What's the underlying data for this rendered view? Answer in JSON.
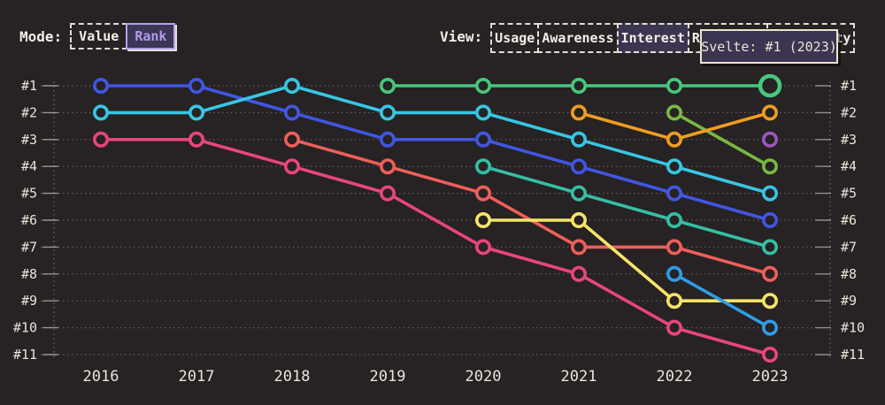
{
  "controls": {
    "mode": {
      "label": "Mode:",
      "options": [
        {
          "label": "Value",
          "selected": false
        },
        {
          "label": "Rank",
          "selected": true
        }
      ]
    },
    "view": {
      "label": "View:",
      "options": [
        {
          "label": "Usage",
          "selected": false
        },
        {
          "label": "Awareness",
          "selected": false
        },
        {
          "label": "Interest",
          "selected": true
        },
        {
          "label": "Retention",
          "selected": false,
          "occluded_by_tooltip": true
        },
        {
          "label": "Positivity",
          "selected": false,
          "partially_occluded_by_tooltip": true,
          "visible_fragment": "ty"
        }
      ]
    }
  },
  "tooltip": {
    "text": "Svelte: #1 (2023)"
  },
  "colors": {
    "background": "#272223",
    "grid_dotted": "rgba(238,232,222,0.30)",
    "tick_solid": "rgba(238,232,222,0.55)",
    "axis_label": "#eae4d8",
    "selected_fill": "#3b3552",
    "selected_mode_border": "#b6a1ea",
    "tooltip_border": "#eee3cc"
  },
  "chart_data": {
    "type": "line",
    "variant": "rank-bump",
    "title": "",
    "xlabel": "",
    "ylabel": "",
    "grid": "dotted horizontal lines per rank, dotted vertical axis lines both sides, rank labels on both sides",
    "years": [
      2016,
      2017,
      2018,
      2019,
      2020,
      2021,
      2022,
      2023
    ],
    "rank_axis": {
      "min": 1,
      "max": 11,
      "labels": [
        "#1",
        "#2",
        "#3",
        "#4",
        "#5",
        "#6",
        "#7",
        "#8",
        "#9",
        "#10",
        "#11"
      ],
      "sides": [
        "left",
        "right"
      ],
      "inverted": true
    },
    "series": [
      {
        "name": "rose",
        "color": "#e8467c",
        "ranks": {
          "2016": 3,
          "2017": 3,
          "2018": 4,
          "2019": 5,
          "2020": 7,
          "2021": 8,
          "2022": 10,
          "2023": 11
        }
      },
      {
        "name": "royal-blue",
        "color": "#4156e3",
        "ranks": {
          "2016": 1,
          "2017": 1,
          "2018": 2,
          "2019": 3,
          "2020": 3,
          "2021": 4,
          "2022": 5,
          "2023": 6
        }
      },
      {
        "name": "cyan",
        "color": "#38c6e3",
        "ranks": {
          "2016": 2,
          "2017": 2,
          "2018": 1,
          "2019": 2,
          "2020": 2,
          "2021": 3,
          "2022": 4,
          "2023": 5
        }
      },
      {
        "name": "salmon-red",
        "color": "#ee5f5b",
        "ranks": {
          "2018": 3,
          "2019": 4,
          "2020": 5,
          "2021": 7,
          "2022": 7,
          "2023": 8
        }
      },
      {
        "name": "teal",
        "color": "#35bfa4",
        "ranks": {
          "2020": 4,
          "2021": 5,
          "2022": 6,
          "2023": 7
        }
      },
      {
        "name": "yellow",
        "color": "#f6e469",
        "ranks": {
          "2020": 6,
          "2021": 6,
          "2022": 9,
          "2023": 9
        }
      },
      {
        "name": "sky-blue",
        "color": "#2f9ce8",
        "ranks": {
          "2022": 8,
          "2023": 10
        }
      },
      {
        "name": "olive-green",
        "color": "#79b843",
        "ranks": {
          "2022": 2,
          "2023": 4
        }
      },
      {
        "name": "amber-orange",
        "color": "#f09d20",
        "ranks": {
          "2021": 2,
          "2022": 3,
          "2023": 2
        }
      },
      {
        "name": "purple",
        "color": "#9d57bc",
        "ranks": {
          "2023": 3
        }
      },
      {
        "name": "Svelte",
        "color": "#46c87e",
        "ranks": {
          "2019": 1,
          "2020": 1,
          "2021": 1,
          "2022": 1,
          "2023": 1
        },
        "highlighted_point": {
          "year": 2023,
          "rank": 1
        }
      }
    ],
    "highlight": {
      "series": "Svelte",
      "year": 2023,
      "rank": 1
    }
  }
}
